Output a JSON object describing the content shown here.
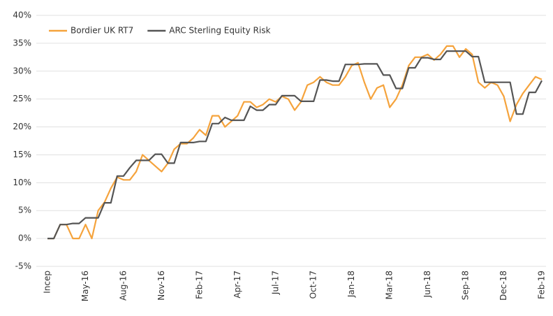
{
  "chart_data": {
    "type": "line",
    "categories": [
      "Incep",
      null,
      null,
      null,
      null,
      null,
      "May-16",
      null,
      null,
      null,
      null,
      null,
      "Aug-16",
      null,
      null,
      null,
      null,
      null,
      "Nov-16",
      null,
      null,
      null,
      null,
      null,
      "Feb-17",
      null,
      null,
      null,
      null,
      null,
      "Apr-17",
      null,
      null,
      null,
      null,
      null,
      "Jul-17",
      null,
      null,
      null,
      null,
      null,
      "Oct-17",
      null,
      null,
      null,
      null,
      null,
      "Jan-18",
      null,
      null,
      null,
      null,
      null,
      "Mar-18",
      null,
      null,
      null,
      null,
      null,
      "Jun-18",
      null,
      null,
      null,
      null,
      null,
      "Sep-18",
      null,
      null,
      null,
      null,
      null,
      "Dec-18",
      null,
      null,
      null,
      null,
      null,
      "Feb-19"
    ],
    "series": [
      {
        "name": "Bordier UK RT7",
        "color": "#f5a33c",
        "values": [
          0,
          0,
          2.5,
          2.5,
          0,
          0,
          2.5,
          0,
          5,
          6.5,
          9,
          11,
          10.5,
          10.5,
          12,
          15,
          14,
          13,
          12,
          13.5,
          16,
          17,
          17,
          18,
          19.5,
          18.5,
          22,
          22,
          20,
          21,
          22,
          24.5,
          24.5,
          23.5,
          24,
          25,
          24.5,
          25.5,
          25,
          23,
          24.5,
          27.5,
          28,
          29,
          28,
          27.5,
          27.5,
          29,
          31,
          31.5,
          28,
          25,
          27,
          27.5,
          23.5,
          25,
          27.5,
          31,
          32.5,
          32.5,
          33,
          32,
          33,
          34.5,
          34.5,
          32.5,
          34,
          33,
          28,
          27,
          28,
          27.5,
          25.5,
          21,
          24,
          26,
          27.5,
          29,
          28.5
        ]
      },
      {
        "name": "ARC Sterling Equity Risk",
        "color": "#555555",
        "values": [
          0,
          0,
          2.5,
          2.5,
          2.7,
          2.7,
          3.7,
          3.7,
          3.7,
          6.4,
          6.4,
          11.2,
          11.2,
          12.7,
          14,
          14,
          14,
          15.1,
          15.1,
          13.5,
          13.5,
          17.2,
          17.2,
          17.2,
          17.4,
          17.4,
          20.6,
          20.6,
          21.7,
          21.2,
          21.2,
          21.2,
          23.7,
          23,
          23,
          24,
          24,
          25.6,
          25.6,
          25.6,
          24.6,
          24.6,
          24.6,
          28.4,
          28.4,
          28.2,
          28.2,
          31.2,
          31.2,
          31.2,
          31.3,
          31.3,
          31.3,
          29.3,
          29.3,
          26.9,
          26.9,
          30.6,
          30.6,
          32.4,
          32.4,
          32.1,
          32.1,
          33.6,
          33.6,
          33.6,
          33.6,
          32.6,
          32.6,
          28,
          28,
          28,
          28,
          28,
          22.3,
          22.3,
          26.2,
          26.2,
          28.3
        ]
      }
    ],
    "ylim": [
      -5,
      40
    ],
    "yticks": [
      {
        "value": -5,
        "label": "-5%"
      },
      {
        "value": 0,
        "label": "0%"
      },
      {
        "value": 5,
        "label": "5%"
      },
      {
        "value": 10,
        "label": "10%"
      },
      {
        "value": 15,
        "label": "15%"
      },
      {
        "value": 20,
        "label": "20%"
      },
      {
        "value": 25,
        "label": "25%"
      },
      {
        "value": 30,
        "label": "30%"
      },
      {
        "value": 35,
        "label": "35%"
      },
      {
        "value": 40,
        "label": "40%"
      }
    ],
    "grid": true,
    "legend": "top-left"
  }
}
